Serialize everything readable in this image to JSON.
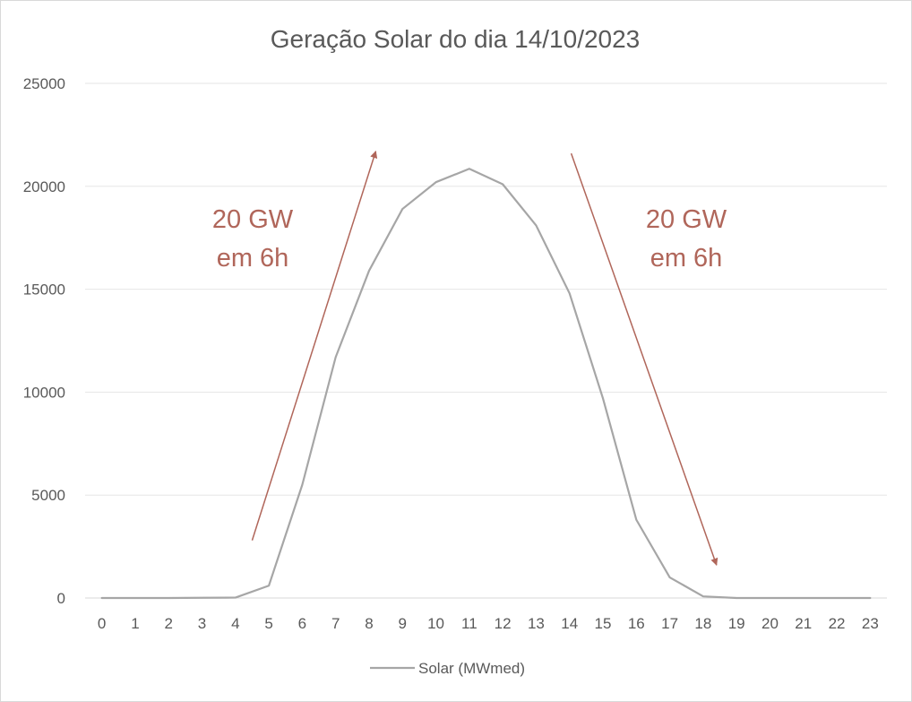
{
  "chart_data": {
    "type": "line",
    "title": "Geração Solar do dia 14/10/2023",
    "xlabel": "",
    "ylabel": "",
    "x": [
      0,
      1,
      2,
      3,
      4,
      5,
      6,
      7,
      8,
      9,
      10,
      11,
      12,
      13,
      14,
      15,
      16,
      17,
      18,
      19,
      20,
      21,
      22,
      23
    ],
    "series": [
      {
        "name": "Solar (MWmed)",
        "color": "#a6a6a6",
        "values": [
          0,
          0,
          0,
          10,
          20,
          600,
          5500,
          11700,
          15900,
          18900,
          20200,
          20850,
          20100,
          18100,
          14800,
          9700,
          3800,
          1000,
          80,
          0,
          0,
          0,
          0,
          0
        ]
      }
    ],
    "ylim": [
      0,
      25000
    ],
    "yticks": [
      "0",
      "5000",
      "10000",
      "15000",
      "20000",
      "25000"
    ],
    "xticks": [
      "0",
      "1",
      "2",
      "3",
      "4",
      "5",
      "6",
      "7",
      "8",
      "9",
      "10",
      "11",
      "12",
      "13",
      "14",
      "15",
      "16",
      "17",
      "18",
      "19",
      "20",
      "21",
      "22",
      "23"
    ],
    "grid": true,
    "legend_position": "bottom",
    "annotations": [
      {
        "line1": "20 GW",
        "line2": "em 6h",
        "color": "#b0665a"
      },
      {
        "line1": "20 GW",
        "line2": "em 6h",
        "color": "#b0665a"
      }
    ],
    "arrows": [
      {
        "from": {
          "x": 4.5,
          "y": 2800
        },
        "to": {
          "x": 8.2,
          "y": 21700
        },
        "color": "#b0665a"
      },
      {
        "from": {
          "x": 14.05,
          "y": 21600
        },
        "to": {
          "x": 18.4,
          "y": 1600
        },
        "color": "#b0665a"
      }
    ]
  }
}
